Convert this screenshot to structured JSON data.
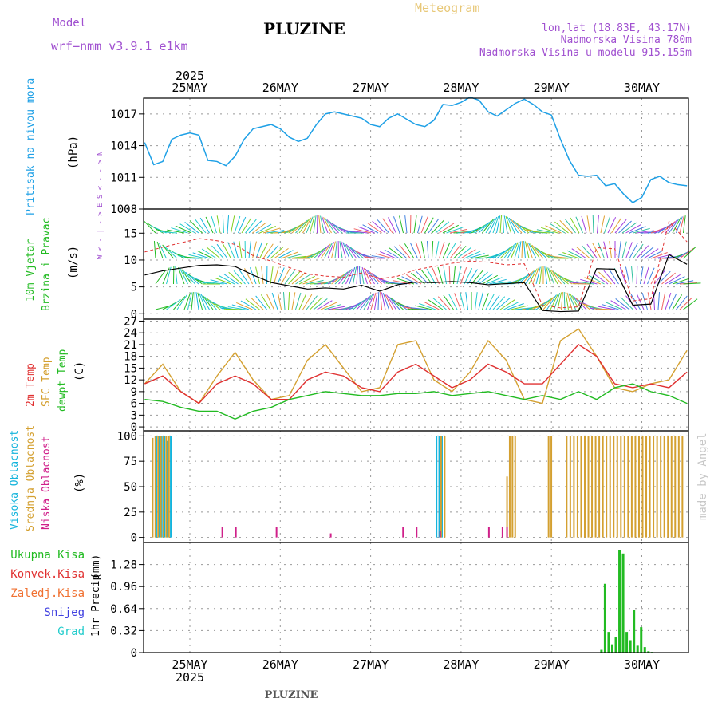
{
  "header": {
    "model_label": "Model",
    "model_name": "wrf−nmm_v3.9.1 e1km",
    "title": "PLUZINE",
    "meteogram": "Meteogram",
    "lonlat": "lon,lat (18.83E, 43.17N)",
    "elevation": "Nadmorska Visina 780m",
    "model_elevation": "Nadmorska Visina u modelu 915.155m",
    "watermark": "made by Angel",
    "bottom_title": "PLUZINE"
  },
  "colors": {
    "pressure": "#1ea0e6",
    "cyan": "#14b4dc",
    "green": "#22bb22",
    "red": "#e03030",
    "orange": "#f07030",
    "gold": "#d4a030",
    "purple": "#a040e0",
    "magenta": "#d0208a",
    "blue": "#4040e0",
    "teal": "#22cccc"
  },
  "time_axis": {
    "year": "2025",
    "days": [
      "25MAY",
      "26MAY",
      "27MAY",
      "28MAY",
      "29MAY",
      "30MAY"
    ]
  },
  "chart_data": [
    {
      "type": "line",
      "panel": "pressure",
      "ylabel_main": "Pritisak na nivou mora",
      "unit": "(hPa)",
      "yticks": [
        "1008",
        "1011",
        "1014",
        "1017"
      ],
      "ylim": [
        1008,
        1018.5
      ],
      "xlim": [
        0,
        6
      ],
      "series": [
        {
          "x": [
            0,
            0.1,
            0.2,
            0.3,
            0.4,
            0.5,
            0.6,
            0.7,
            0.8,
            0.9,
            1.0,
            1.1,
            1.2,
            1.3,
            1.4,
            1.5,
            1.6,
            1.7,
            1.8,
            1.9,
            2.0,
            2.1,
            2.2,
            2.3,
            2.4,
            2.5,
            2.6,
            2.7,
            2.8,
            2.9,
            3.0,
            3.1,
            3.2,
            3.3,
            3.4,
            3.5,
            3.6,
            3.7,
            3.8,
            3.9,
            4.0,
            4.1,
            4.2,
            4.3,
            4.4,
            4.5,
            4.6,
            4.7,
            4.8,
            4.9,
            5.0,
            5.1,
            5.2,
            5.3,
            5.4,
            5.5,
            5.6,
            5.7,
            5.8,
            5.9,
            6.0
          ],
          "y": [
            1014.3,
            1012.2,
            1012.5,
            1014.6,
            1015.0,
            1015.2,
            1015.0,
            1012.6,
            1012.5,
            1012.1,
            1013.0,
            1014.6,
            1015.6,
            1015.8,
            1016.0,
            1015.6,
            1014.8,
            1014.4,
            1014.7,
            1016.0,
            1017.0,
            1017.2,
            1017.0,
            1016.8,
            1016.6,
            1016.0,
            1015.8,
            1016.6,
            1017.0,
            1016.5,
            1016.0,
            1015.8,
            1016.4,
            1017.9,
            1017.8,
            1018.1,
            1018.6,
            1018.3,
            1017.2,
            1016.8,
            1017.4,
            1018.0,
            1018.4,
            1017.9,
            1017.2,
            1016.9,
            1014.6,
            1012.6,
            1011.2,
            1011.1,
            1011.2,
            1010.2,
            1010.4,
            1009.4,
            1008.6,
            1009.1,
            1010.8,
            1011.1,
            1010.5,
            1010.3,
            1010.2
          ]
        }
      ]
    },
    {
      "type": "line",
      "panel": "wind",
      "ylabel_main": "10m Vjetar",
      "ylabel_sub": "Brzina i Pravac",
      "unit": "(m/s)",
      "compass": [
        "W",
        "<",
        "-",
        "|",
        "-",
        ">",
        "E",
        "S",
        "<",
        "-",
        "-",
        ">",
        "N"
      ],
      "yticks": [
        "0",
        "5",
        "10",
        "15"
      ],
      "ylim": [
        -1,
        19.5
      ],
      "series": [
        {
          "name": "speed",
          "x": [
            0,
            0.2,
            0.4,
            0.6,
            0.8,
            1.0,
            1.2,
            1.4,
            1.6,
            1.8,
            2.0,
            2.2,
            2.4,
            2.6,
            2.8,
            3.0,
            3.2,
            3.4,
            3.6,
            3.8,
            4.0,
            4.2,
            4.4,
            4.6,
            4.8,
            5.0,
            5.2,
            5.4,
            5.6,
            5.8,
            6.0
          ],
          "y": [
            7.2,
            8.0,
            8.5,
            9.0,
            9.1,
            8.8,
            7.2,
            5.8,
            5.2,
            4.6,
            4.8,
            4.6,
            5.3,
            4.2,
            5.4,
            5.9,
            5.8,
            6.0,
            5.8,
            5.4,
            5.6,
            5.8,
            0.6,
            0.4,
            0.5,
            8.4,
            8.3,
            1.6,
            1.8,
            11.0,
            9.2
          ]
        },
        {
          "name": "gust",
          "x": [
            0,
            0.2,
            0.4,
            0.6,
            0.8,
            1.0,
            1.2,
            1.4,
            1.6,
            1.8,
            2.0,
            2.2,
            2.4,
            2.6,
            2.8,
            3.0,
            3.2,
            3.4,
            3.6,
            3.8,
            4.0,
            4.2,
            4.4,
            4.6,
            4.8,
            5.0,
            5.2,
            5.4,
            5.6,
            5.8,
            6.0
          ],
          "y": [
            11.5,
            12.4,
            13.2,
            14.0,
            13.6,
            12.9,
            10.8,
            9.8,
            8.6,
            7.4,
            7.0,
            6.8,
            7.6,
            6.5,
            7.0,
            8.2,
            8.8,
            9.4,
            9.8,
            9.6,
            9.1,
            9.3,
            1.6,
            1.1,
            1.3,
            12.3,
            12.1,
            2.4,
            2.8,
            17.2,
            13.4
          ]
        }
      ]
    },
    {
      "type": "line",
      "panel": "temperature",
      "ylabel_main": "2m Temp",
      "ylabel_mid": "SFC Temp",
      "ylabel_sub": "dewpt Temp",
      "unit": "(C)",
      "yticks": [
        "0",
        "3",
        "6",
        "9",
        "12",
        "15",
        "18",
        "21",
        "24",
        "27"
      ],
      "ylim": [
        -1,
        27.5
      ],
      "series": [
        {
          "name": "SFC Temp",
          "x": [
            0,
            0.2,
            0.4,
            0.6,
            0.8,
            1.0,
            1.2,
            1.4,
            1.6,
            1.8,
            2.0,
            2.2,
            2.4,
            2.6,
            2.8,
            3.0,
            3.2,
            3.4,
            3.6,
            3.8,
            4.0,
            4.2,
            4.4,
            4.6,
            4.8,
            5.0,
            5.2,
            5.4,
            5.6,
            5.8,
            6.0
          ],
          "y": [
            11,
            16,
            9,
            6,
            13,
            19,
            12,
            7,
            8,
            17,
            21,
            15,
            9,
            10,
            21,
            22,
            12,
            9,
            14,
            22,
            17,
            7,
            6,
            22,
            25,
            18,
            10,
            9,
            11,
            12,
            19.5
          ]
        },
        {
          "name": "2m Temp",
          "x": [
            0,
            0.2,
            0.4,
            0.6,
            0.8,
            1.0,
            1.2,
            1.4,
            1.6,
            1.8,
            2.0,
            2.2,
            2.4,
            2.6,
            2.8,
            3.0,
            3.2,
            3.4,
            3.6,
            3.8,
            4.0,
            4.2,
            4.4,
            4.6,
            4.8,
            5.0,
            5.2,
            5.4,
            5.6,
            5.8,
            6.0
          ],
          "y": [
            11,
            13,
            9,
            6,
            11,
            13,
            11,
            7,
            7,
            12,
            14,
            13,
            10,
            9,
            14,
            16,
            13,
            10,
            12,
            16,
            14,
            11,
            11,
            16,
            21,
            18,
            11,
            10,
            11,
            10,
            14
          ]
        },
        {
          "name": "dewpt Temp",
          "x": [
            0,
            0.2,
            0.4,
            0.6,
            0.8,
            1.0,
            1.2,
            1.4,
            1.6,
            1.8,
            2.0,
            2.2,
            2.4,
            2.6,
            2.8,
            3.0,
            3.2,
            3.4,
            3.6,
            3.8,
            4.0,
            4.2,
            4.4,
            4.6,
            4.8,
            5.0,
            5.2,
            5.4,
            5.6,
            5.8,
            6.0
          ],
          "y": [
            7,
            6.5,
            5,
            4,
            4,
            2,
            4,
            5,
            7,
            8,
            9,
            8.5,
            8,
            8,
            8.5,
            8.5,
            9,
            8,
            8.5,
            9,
            8,
            7,
            8,
            7,
            9,
            7,
            10,
            11,
            9,
            8,
            6
          ]
        }
      ]
    },
    {
      "type": "bar",
      "panel": "cloud",
      "ylabel_main": "Visoka Oblacnost",
      "ylabel_mid": "Srednja Oblacnost",
      "ylabel_sub": "Niska Oblacnost",
      "unit": "(%)",
      "yticks": [
        "0",
        "25",
        "50",
        "75",
        "100"
      ],
      "ylim": [
        -5,
        105
      ],
      "series": [
        {
          "name": "Visoka Oblacnost",
          "x": [
            0.12,
            0.15,
            0.18,
            0.21,
            0.24,
            0.28,
            3.22,
            3.25,
            3.28
          ],
          "values": [
            100,
            100,
            100,
            100,
            95,
            100,
            100,
            100,
            100
          ]
        },
        {
          "name": "Srednja Oblacnost",
          "x": [
            0.08,
            0.11,
            0.14,
            0.17,
            0.2,
            0.23,
            0.26,
            3.27,
            3.31,
            4.0,
            4.03,
            4.06,
            4.09,
            4.46,
            4.49,
            4.66,
            4.7,
            4.74,
            4.78,
            4.82,
            4.86,
            4.9,
            4.94,
            4.98,
            5.02,
            5.06,
            5.1,
            5.14,
            5.18,
            5.22,
            5.26,
            5.3,
            5.34,
            5.38,
            5.42,
            5.46,
            5.5,
            5.54,
            5.58,
            5.62,
            5.66,
            5.7,
            5.74,
            5.78,
            5.82,
            5.86,
            5.9,
            5.94
          ],
          "values": [
            98,
            100,
            100,
            100,
            100,
            100,
            100,
            100,
            100,
            60,
            100,
            100,
            100,
            100,
            100,
            100,
            100,
            100,
            100,
            100,
            100,
            100,
            100,
            100,
            100,
            100,
            100,
            100,
            100,
            100,
            100,
            100,
            100,
            100,
            100,
            100,
            100,
            100,
            100,
            100,
            100,
            100,
            100,
            100,
            100,
            100,
            100,
            100
          ]
        },
        {
          "name": "Niska Oblacnost",
          "x": [
            0.85,
            1.0,
            1.45,
            2.05,
            2.85,
            3.0,
            3.26,
            3.8,
            3.95,
            4.0
          ],
          "values": [
            10,
            10,
            10,
            4,
            10,
            10,
            6,
            10,
            10,
            10
          ]
        }
      ]
    },
    {
      "type": "bar",
      "panel": "precip",
      "legend": [
        "Ukupna Kisa",
        "Konvek.Kisa",
        "Zaledj.Kisa",
        "Snijeg",
        "Grad"
      ],
      "ylabel_main": "1hr Precip",
      "unit": "(mm)",
      "yticks": [
        "0",
        "0.32",
        "0.64",
        "0.96",
        "1.28"
      ],
      "ylim": [
        0,
        1.6
      ],
      "series": [
        {
          "name": "Ukupna Kisa",
          "x": [
            5.04,
            5.08,
            5.12,
            5.16,
            5.2,
            5.24,
            5.28,
            5.32,
            5.36,
            5.4,
            5.44,
            5.48,
            5.52,
            5.56,
            5.6
          ],
          "values": [
            0.04,
            1.0,
            0.3,
            0.12,
            0.22,
            1.49,
            1.44,
            0.3,
            0.18,
            0.62,
            0.1,
            0.37,
            0.08,
            0.02,
            0.01
          ]
        }
      ]
    }
  ]
}
